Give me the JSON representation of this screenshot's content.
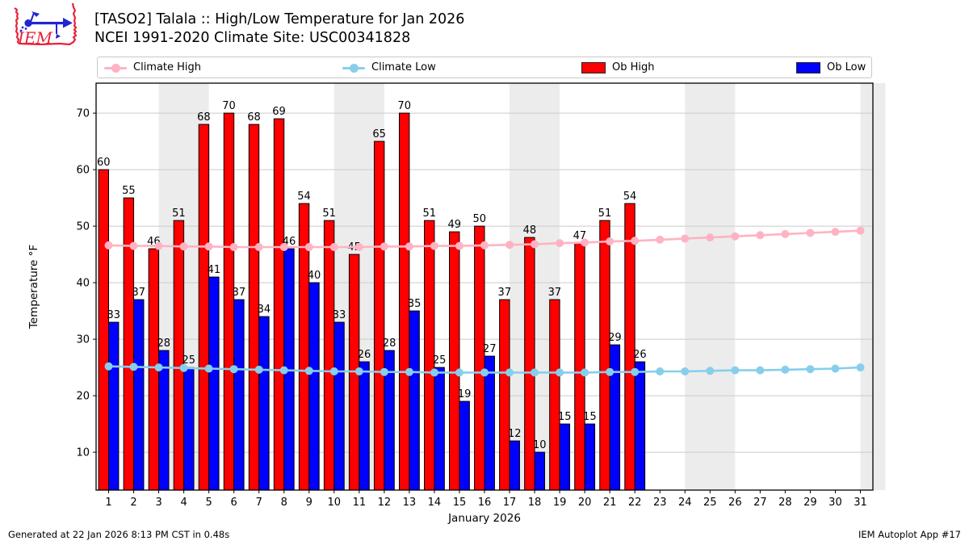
{
  "header": {
    "title_line1": "[TASO2] Talala :: High/Low Temperature for Jan 2026",
    "title_line2": "NCEI 1991-2020 Climate Site: USC00341828"
  },
  "legend": {
    "items": [
      {
        "label": "Climate High",
        "type": "line",
        "color": "#ffb3c2"
      },
      {
        "label": "Climate Low",
        "type": "line",
        "color": "#87ceeb"
      },
      {
        "label": "Ob High",
        "type": "rect",
        "color": "#ff0000"
      },
      {
        "label": "Ob Low",
        "type": "rect",
        "color": "#0000ff"
      }
    ]
  },
  "footer": {
    "left": "Generated at 22 Jan 2026 8:13 PM CST in 0.48s",
    "right": "IEM Autoplot App #17"
  },
  "chart_data": {
    "type": "bar",
    "title": "[TASO2] Talala :: High/Low Temperature for Jan 2026",
    "xlabel": "January 2026",
    "ylabel": "Temperature °F",
    "x": [
      1,
      2,
      3,
      4,
      5,
      6,
      7,
      8,
      9,
      10,
      11,
      12,
      13,
      14,
      15,
      16,
      17,
      18,
      19,
      20,
      21,
      22,
      23,
      24,
      25,
      26,
      27,
      28,
      29,
      30,
      31
    ],
    "ylim": [
      3.3,
      75.3
    ],
    "yticks": [
      10,
      20,
      30,
      40,
      50,
      60,
      70
    ],
    "grid": true,
    "legend_position": "top",
    "weekend_bands": [
      [
        2.5,
        4.5
      ],
      [
        9.5,
        11.5
      ],
      [
        16.5,
        18.5
      ],
      [
        23.5,
        25.5
      ],
      [
        30.5,
        31.5
      ]
    ],
    "band_color": "#ececec",
    "grid_color": "#cbcbcb",
    "series": [
      {
        "name": "Climate High",
        "type": "line",
        "color": "#ffb3c2",
        "values": [
          46.6,
          46.5,
          46.5,
          46.4,
          46.4,
          46.3,
          46.3,
          46.3,
          46.3,
          46.3,
          46.3,
          46.4,
          46.4,
          46.5,
          46.5,
          46.6,
          46.7,
          46.8,
          47.0,
          47.1,
          47.3,
          47.4,
          47.6,
          47.8,
          48.0,
          48.2,
          48.4,
          48.6,
          48.8,
          49.0,
          49.2
        ]
      },
      {
        "name": "Climate Low",
        "type": "line",
        "color": "#87ceeb",
        "values": [
          25.2,
          25.1,
          25.0,
          24.9,
          24.8,
          24.7,
          24.6,
          24.5,
          24.4,
          24.3,
          24.3,
          24.2,
          24.2,
          24.1,
          24.1,
          24.1,
          24.1,
          24.1,
          24.1,
          24.1,
          24.2,
          24.2,
          24.3,
          24.3,
          24.4,
          24.5,
          24.5,
          24.6,
          24.7,
          24.8,
          25.0
        ]
      },
      {
        "name": "Ob High",
        "type": "bar",
        "color": "#ff0000",
        "labeled": true,
        "values": [
          60,
          55,
          46,
          51,
          68,
          70,
          68,
          69,
          54,
          51,
          45,
          65,
          70,
          51,
          49,
          50,
          37,
          48,
          37,
          47,
          51,
          54,
          null,
          null,
          null,
          null,
          null,
          null,
          null,
          null,
          null
        ]
      },
      {
        "name": "Ob Low",
        "type": "bar",
        "color": "#0000ff",
        "labeled": true,
        "values": [
          33,
          37,
          28,
          25,
          41,
          37,
          34,
          46,
          40,
          33,
          26,
          28,
          35,
          25,
          19,
          27,
          12,
          10,
          15,
          15,
          29,
          26,
          null,
          null,
          null,
          null,
          null,
          null,
          null,
          null,
          null
        ]
      }
    ]
  }
}
